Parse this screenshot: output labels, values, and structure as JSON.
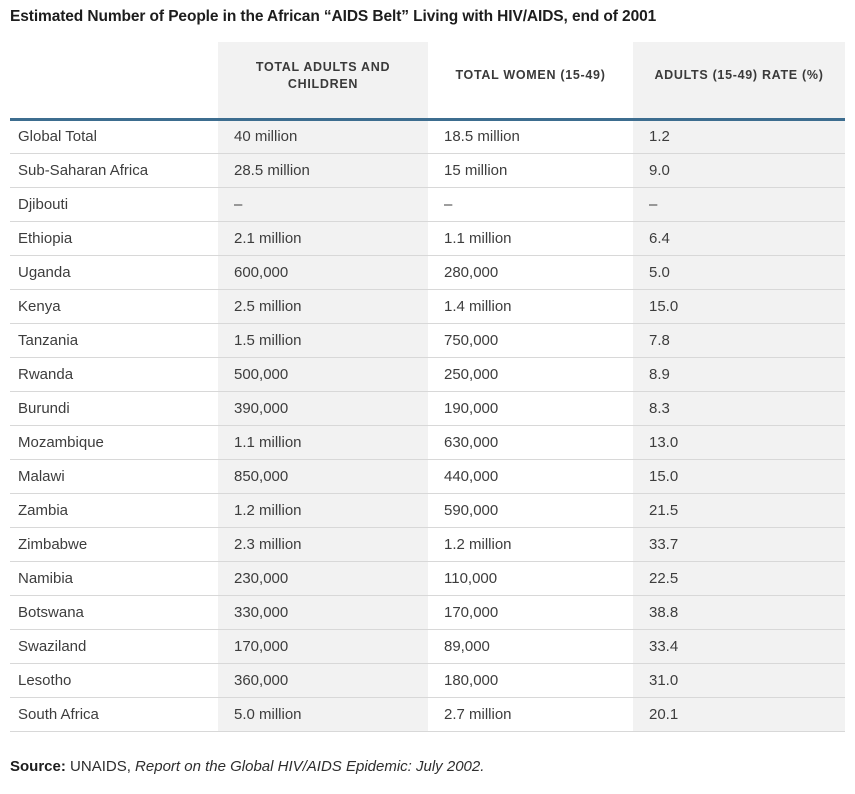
{
  "chart_data": {
    "type": "table",
    "title": "Estimated Number of People in the African “AIDS Belt” Living with HIV/AIDS, end of 2001",
    "columns": [
      "",
      "TOTAL ADULTS AND CHILDREN",
      "TOTAL WOMEN (15-49)",
      "ADULTS (15-49) RATE (%)"
    ],
    "rows": [
      [
        "Global Total",
        "40 million",
        "18.5 million",
        "1.2"
      ],
      [
        "Sub-Saharan Africa",
        "28.5 million",
        "15 million",
        "9.0"
      ],
      [
        "Djibouti",
        "–",
        "–",
        "–"
      ],
      [
        "Ethiopia",
        "2.1 million",
        "1.1 million",
        "6.4"
      ],
      [
        "Uganda",
        "600,000",
        "280,000",
        "5.0"
      ],
      [
        "Kenya",
        "2.5 million",
        "1.4 million",
        "15.0"
      ],
      [
        "Tanzania",
        "1.5 million",
        "750,000",
        "7.8"
      ],
      [
        "Rwanda",
        "500,000",
        "250,000",
        "8.9"
      ],
      [
        "Burundi",
        "390,000",
        "190,000",
        "8.3"
      ],
      [
        "Mozambique",
        "1.1 million",
        "630,000",
        "13.0"
      ],
      [
        "Malawi",
        "850,000",
        "440,000",
        "15.0"
      ],
      [
        "Zambia",
        "1.2 million",
        "590,000",
        "21.5"
      ],
      [
        "Zimbabwe",
        "2.3 million",
        "1.2 million",
        "33.7"
      ],
      [
        "Namibia",
        "230,000",
        "110,000",
        "22.5"
      ],
      [
        "Botswana",
        "330,000",
        "170,000",
        "38.8"
      ],
      [
        "Swaziland",
        "170,000",
        "89,000",
        "33.4"
      ],
      [
        "Lesotho",
        "360,000",
        "180,000",
        "31.0"
      ],
      [
        "South Africa",
        "5.0 million",
        "2.7 million",
        "20.1"
      ]
    ],
    "source": {
      "label": "Source:",
      "org": "UNAIDS,",
      "work": "Report on the Global HIV/AIDS Epidemic: July 2002."
    },
    "layout": {
      "striped_column_indexes": [
        1,
        3
      ],
      "legend": "none",
      "grid": "horizontal-row-rules"
    },
    "colors": {
      "header_rule": "#3d6d8f",
      "column_stripe": "#f2f2f2",
      "row_border": "#d8d8d8",
      "title_text": "#1d1d1d",
      "body_text": "#3d3d3d"
    }
  }
}
